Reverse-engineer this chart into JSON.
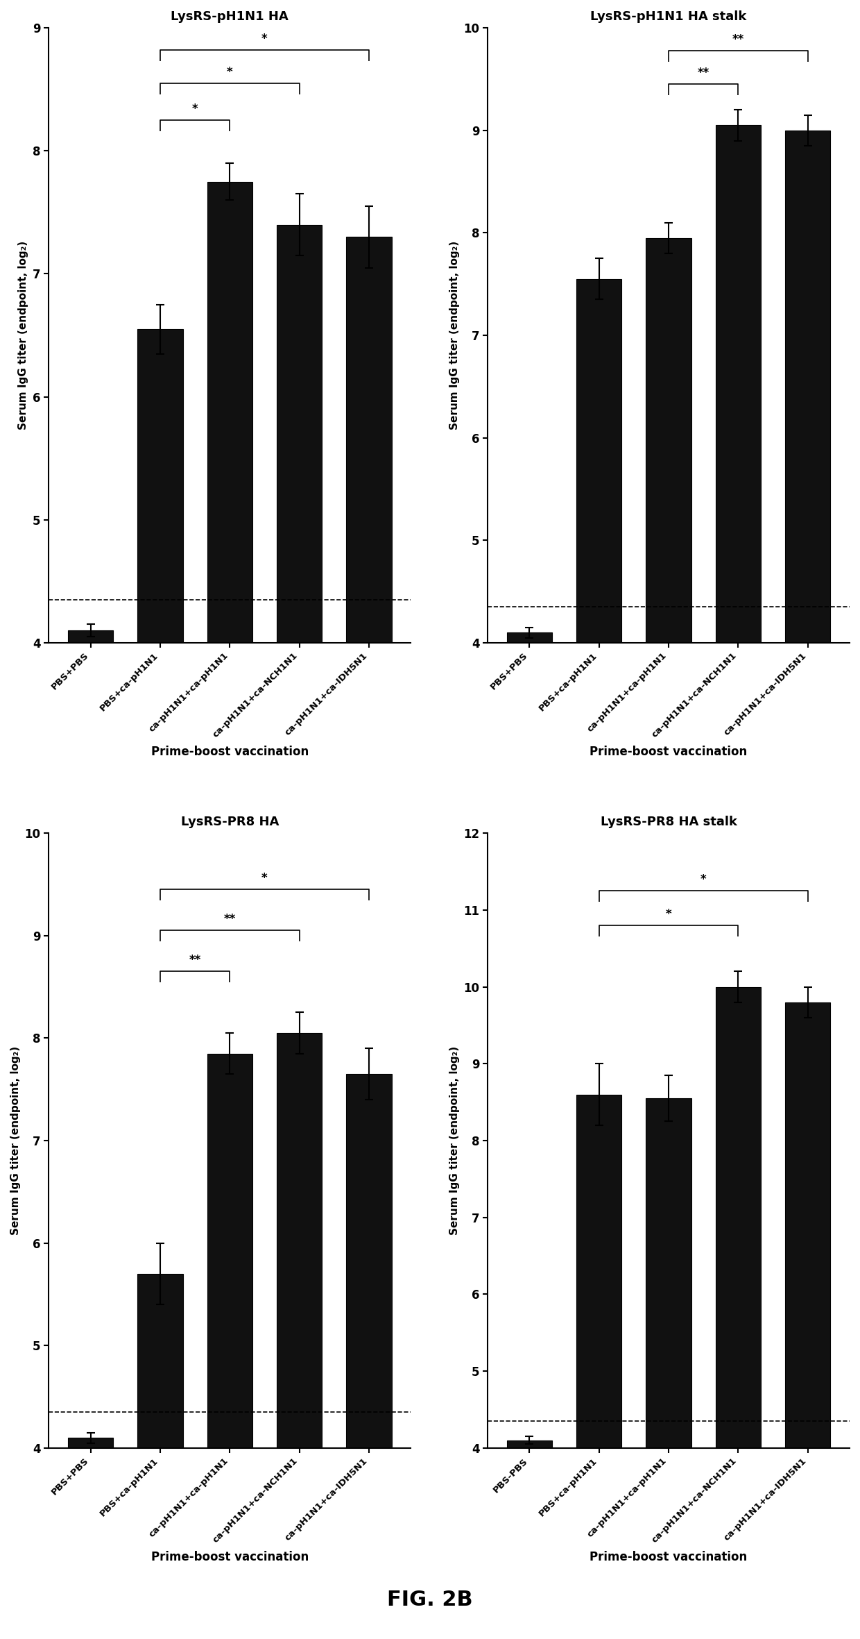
{
  "panels": [
    {
      "title": "LysRS-pH1N1 HA",
      "categories": [
        "PBS+PBS",
        "PBS+ca-pH1N1",
        "ca-pH1N1+ca-pH1N1",
        "ca-pH1N1+ca-NCH1N1",
        "ca-pH1N1+ca-IDH5N1"
      ],
      "values": [
        4.1,
        6.55,
        7.75,
        7.4,
        7.3
      ],
      "errors": [
        0.05,
        0.2,
        0.15,
        0.25,
        0.25
      ],
      "ylim": [
        4,
        9
      ],
      "yticks": [
        4,
        5,
        6,
        7,
        8,
        9
      ],
      "ylabel": "Serum IgG titer (endpoint, log₂)",
      "xlabel": "Prime-boost vaccination",
      "hline": 4.35,
      "significance": [
        {
          "bars": [
            1,
            2
          ],
          "label": "*",
          "y": 8.25
        },
        {
          "bars": [
            1,
            3
          ],
          "label": "*",
          "y": 8.55
        },
        {
          "bars": [
            1,
            4
          ],
          "label": "*",
          "y": 8.82
        }
      ]
    },
    {
      "title": "LysRS-pH1N1 HA stalk",
      "categories": [
        "PBS+PBS",
        "PBS+ca-pH1N1",
        "ca-pH1N1+ca-pH1N1",
        "ca-pH1N1+ca-NCH1N1",
        "ca-pH1N1+ca-IDH5N1"
      ],
      "values": [
        4.1,
        7.55,
        7.95,
        9.05,
        9.0
      ],
      "errors": [
        0.05,
        0.2,
        0.15,
        0.15,
        0.15
      ],
      "ylim": [
        4,
        10
      ],
      "yticks": [
        4,
        5,
        6,
        7,
        8,
        9,
        10
      ],
      "ylabel": "Serum IgG titer (endpoint, log₂)",
      "xlabel": "Prime-boost vaccination",
      "hline": 4.35,
      "significance": [
        {
          "bars": [
            2,
            3
          ],
          "label": "**",
          "y": 9.45
        },
        {
          "bars": [
            2,
            4
          ],
          "label": "**",
          "y": 9.78
        }
      ]
    },
    {
      "title": "LysRS-PR8 HA",
      "categories": [
        "PBS+PBS",
        "PBS+ca-pH1N1",
        "ca-pH1N1+ca-pH1N1",
        "ca-pH1N1+ca-NCH1N1",
        "ca-pH1N1+ca-IDH5N1"
      ],
      "values": [
        4.1,
        5.7,
        7.85,
        8.05,
        7.65
      ],
      "errors": [
        0.05,
        0.3,
        0.2,
        0.2,
        0.25
      ],
      "ylim": [
        4,
        10
      ],
      "yticks": [
        4,
        5,
        6,
        7,
        8,
        9,
        10
      ],
      "ylabel": "Serum IgG titer (endpoint, log₂)",
      "xlabel": "Prime-boost vaccination",
      "hline": 4.35,
      "significance": [
        {
          "bars": [
            1,
            2
          ],
          "label": "**",
          "y": 8.65
        },
        {
          "bars": [
            1,
            3
          ],
          "label": "**",
          "y": 9.05
        },
        {
          "bars": [
            1,
            4
          ],
          "label": "*",
          "y": 9.45
        }
      ]
    },
    {
      "title": "LysRS-PR8 HA stalk",
      "categories": [
        "PBS-PBS",
        "PBS+ca-pH1N1",
        "ca-pH1N1+ca-pH1N1",
        "ca-pH1N1+ca-NCH1N1",
        "ca-pH1N1+ca-IDH5N1"
      ],
      "values": [
        4.1,
        8.6,
        8.55,
        10.0,
        9.8
      ],
      "errors": [
        0.05,
        0.4,
        0.3,
        0.2,
        0.2
      ],
      "ylim": [
        4,
        12
      ],
      "yticks": [
        4,
        5,
        6,
        7,
        8,
        9,
        10,
        11,
        12
      ],
      "ylabel": "Serum IgG titer (endpoint, log₂)",
      "xlabel": "Prime-boost vaccination",
      "hline": 4.35,
      "significance": [
        {
          "bars": [
            1,
            3
          ],
          "label": "*",
          "y": 10.8
        },
        {
          "bars": [
            1,
            4
          ],
          "label": "*",
          "y": 11.25
        }
      ]
    }
  ],
  "fig_label": "FIG. 2B",
  "bar_color": "#111111",
  "bar_width": 0.65,
  "background_color": "#ffffff"
}
